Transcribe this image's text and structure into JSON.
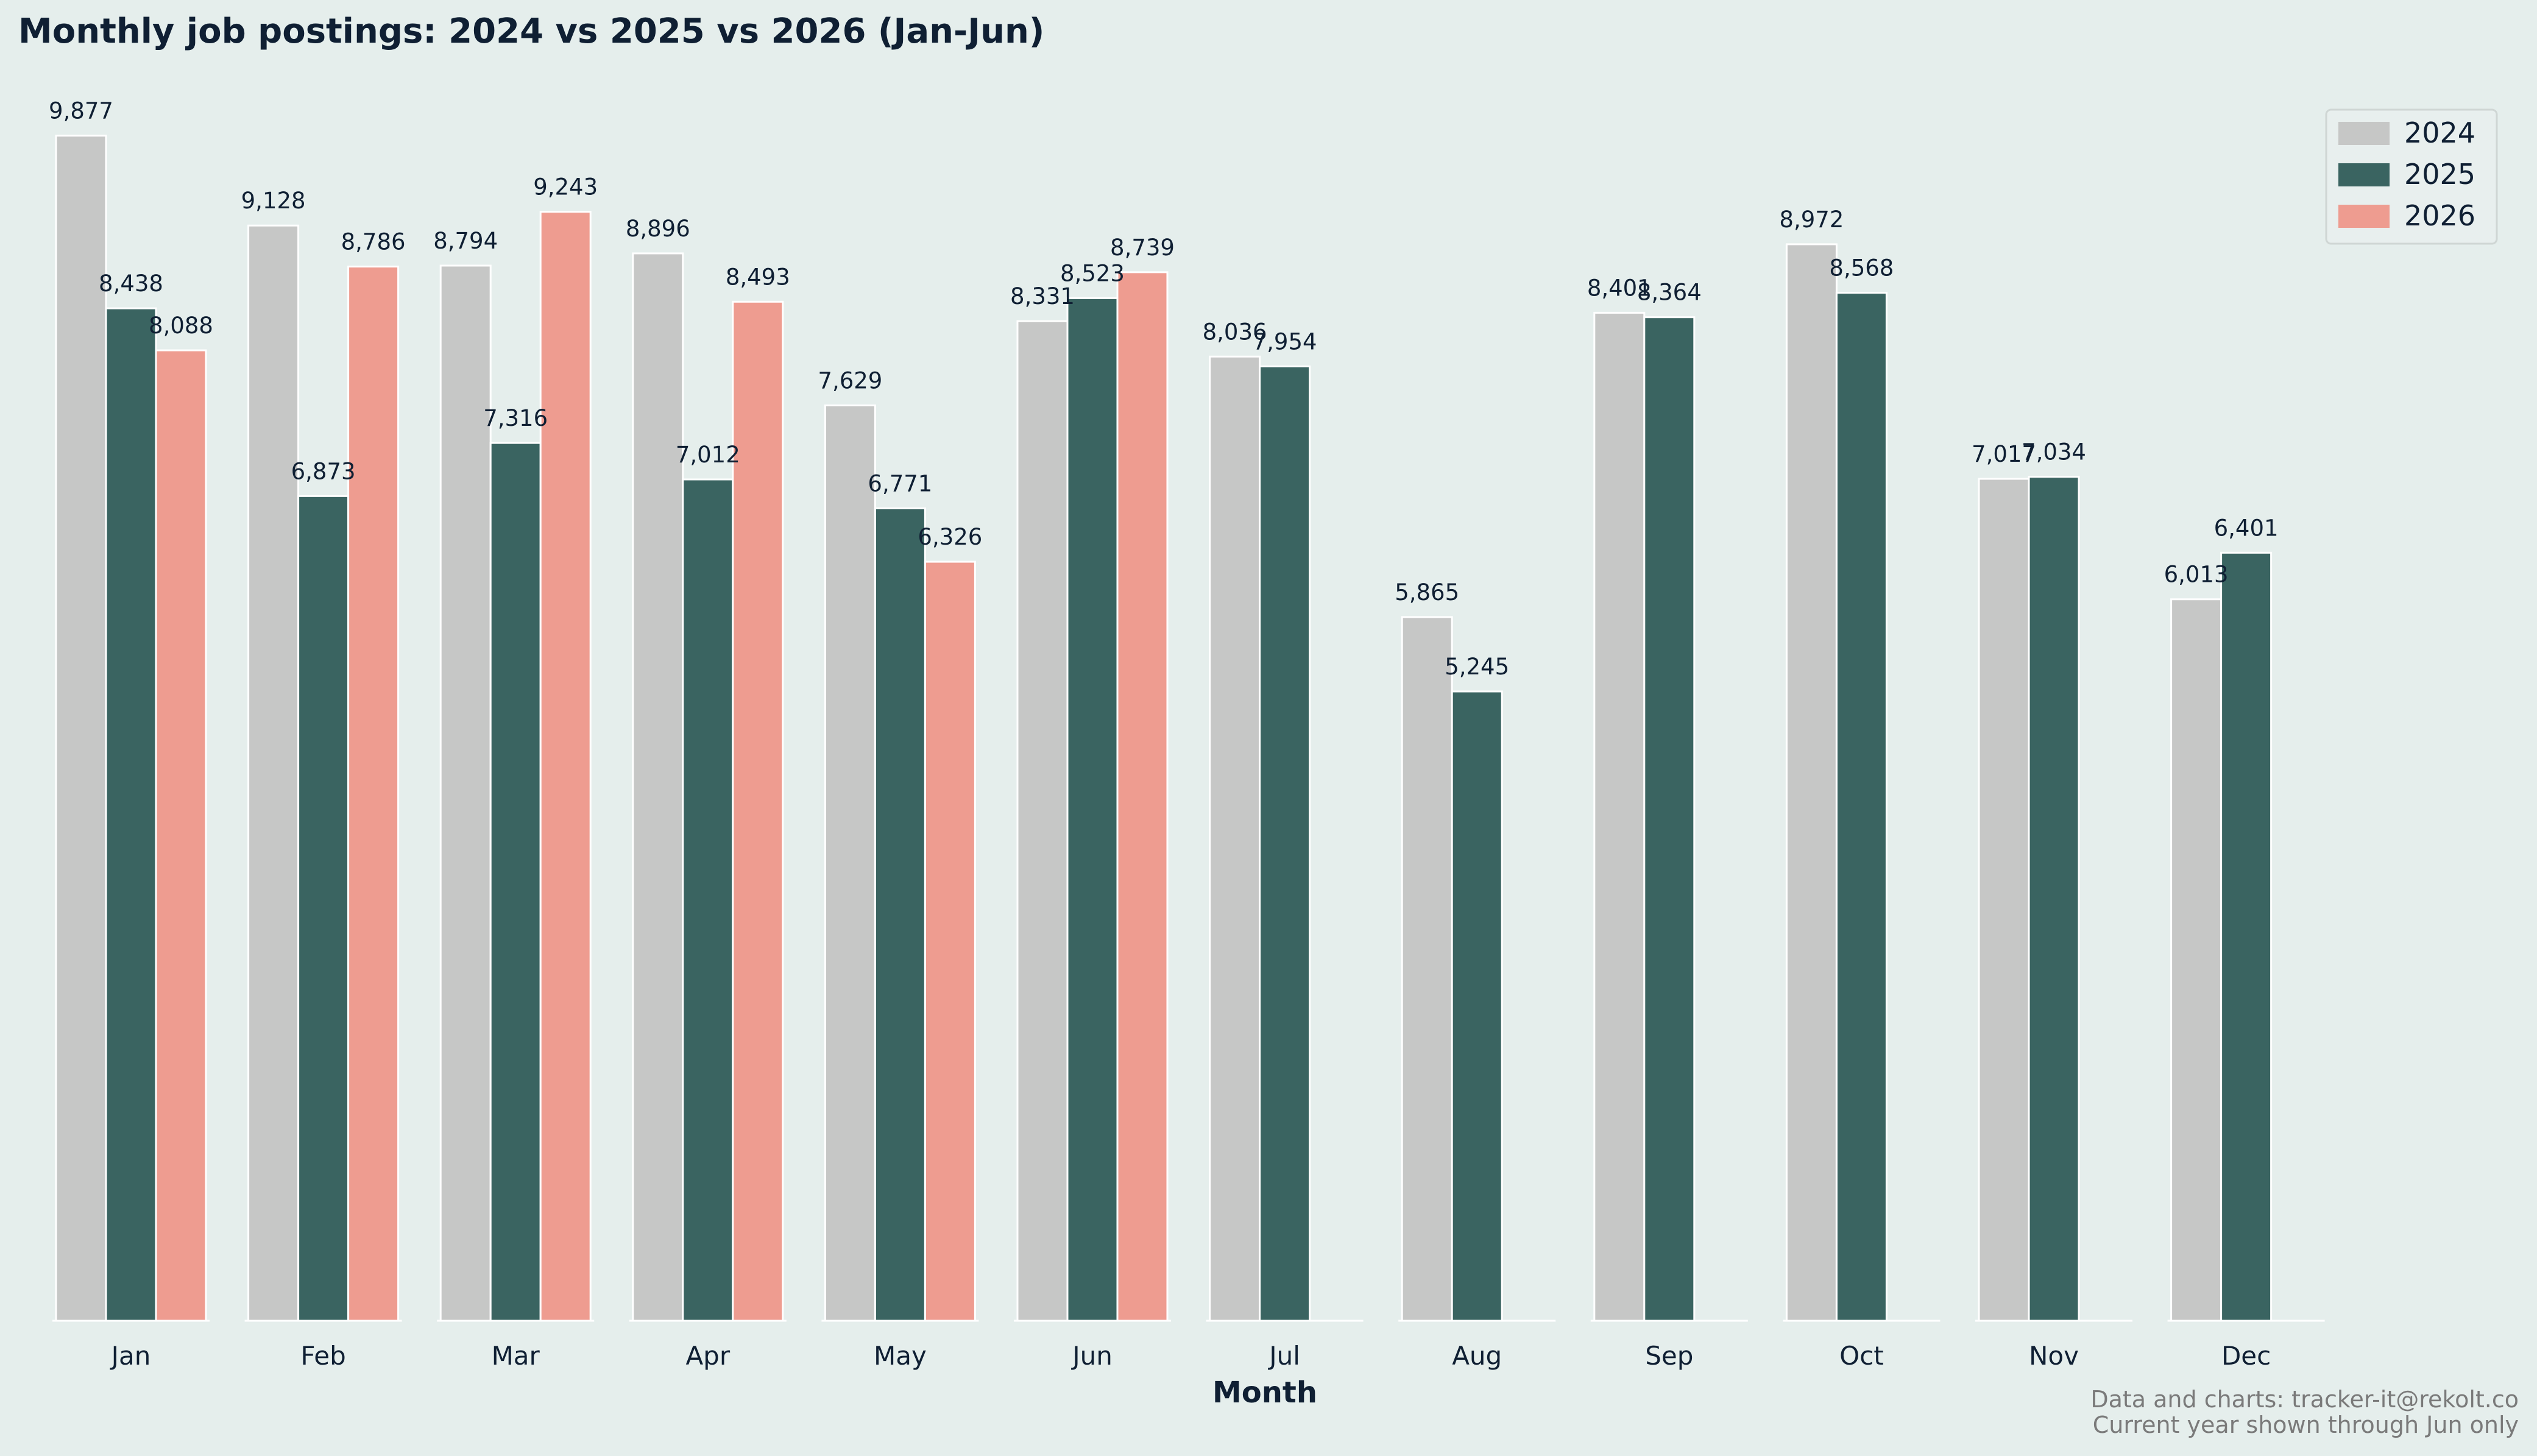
{
  "chart_data": {
    "type": "bar",
    "title": "Monthly job postings: 2024 vs 2025 vs 2026 (Jan-Jun)",
    "xlabel": "Month",
    "ylabel": "",
    "categories": [
      "Jan",
      "Feb",
      "Mar",
      "Apr",
      "May",
      "Jun",
      "Jul",
      "Aug",
      "Sep",
      "Oct",
      "Nov",
      "Dec"
    ],
    "series": [
      {
        "name": "2024",
        "color": "#c6c7c6",
        "values": [
          9877,
          9128,
          8794,
          8896,
          7629,
          8331,
          8036,
          5865,
          8401,
          8972,
          7017,
          6013
        ],
        "labels": [
          "9,877",
          "9,128",
          "8,794",
          "8,896",
          "7,629",
          "8,331",
          "8,036",
          "5,865",
          "8,401",
          "8,972",
          "7,017",
          "6,013"
        ]
      },
      {
        "name": "2025",
        "color": "#3a6461",
        "values": [
          8438,
          6873,
          7316,
          7012,
          6771,
          8523,
          7954,
          5245,
          8364,
          8568,
          7034,
          6401
        ],
        "labels": [
          "8,438",
          "6,873",
          "7,316",
          "7,012",
          "6,771",
          "8,523",
          "7,954",
          "5,245",
          "8,364",
          "8,568",
          "7,034",
          "6,401"
        ]
      },
      {
        "name": "2026",
        "color": "#ee9c90",
        "values": [
          8088,
          8786,
          9243,
          8493,
          6326,
          8739,
          null,
          null,
          null,
          null,
          null,
          null
        ],
        "labels": [
          "8,088",
          "8,786",
          "9,243",
          "8,493",
          "6,326",
          "8,739",
          null,
          null,
          null,
          null,
          null,
          null
        ]
      }
    ],
    "ylim": [
      0,
      10500
    ],
    "legend": "top-right",
    "grid": false,
    "footnote": [
      "Data and charts: tracker-it@rekolt.co",
      "Current year shown through Jun only"
    ]
  }
}
